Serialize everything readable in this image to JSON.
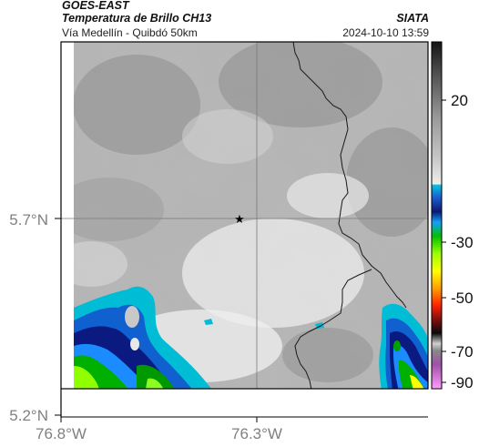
{
  "header": {
    "satellite": "GOES-EAST",
    "product": "Temperatura de Brillo CH13",
    "region": "Vía Medellín - Quibdó 50km",
    "source": "SIATA",
    "timestamp": "2024-10-10 13:59"
  },
  "axes": {
    "x_ticks": [
      "76.8°W",
      "76.3°W"
    ],
    "y_ticks": [
      "5.7°N",
      "5.2°N"
    ]
  },
  "colorbar": {
    "ticks": [
      "20",
      "-30",
      "-50",
      "-70",
      "-90"
    ],
    "stops": [
      {
        "v": 38,
        "color": "#1a1a1a"
      },
      {
        "v": 30,
        "color": "#5a5a5a"
      },
      {
        "v": 20,
        "color": "#a8a8a8"
      },
      {
        "v": 10,
        "color": "#c6c6c6"
      },
      {
        "v": -20,
        "color": "#ebebeb"
      },
      {
        "v": -20,
        "color": "#00bcd4"
      },
      {
        "v": -30,
        "color": "#0a2a8a"
      },
      {
        "v": -35,
        "color": "#1aa0ff"
      },
      {
        "v": -40,
        "color": "#00c800"
      },
      {
        "v": -45,
        "color": "#9aff00"
      },
      {
        "v": -50,
        "color": "#ffff00"
      },
      {
        "v": -55,
        "color": "#ffa000"
      },
      {
        "v": -60,
        "color": "#ff2000"
      },
      {
        "v": -65,
        "color": "#901010"
      },
      {
        "v": -70,
        "color": "#101010"
      },
      {
        "v": -76,
        "color": "#c0c0c0"
      },
      {
        "v": -82,
        "color": "#9a4aa0"
      },
      {
        "v": -92,
        "color": "#ff90ff"
      }
    ]
  },
  "marker": {
    "label": "station-star",
    "symbol": "★"
  },
  "legend_symbols": {
    "cold_cloud": "cyan-blue-green-yellow",
    "warm": "gray"
  }
}
